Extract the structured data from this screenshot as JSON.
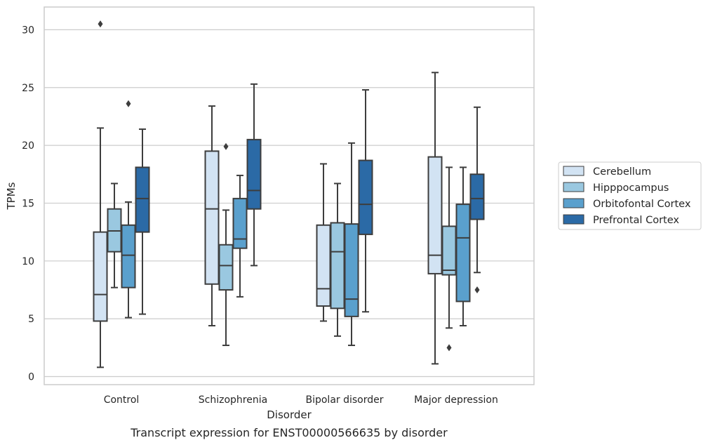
{
  "caption": "Transcript expression for ENST00000566635 by disorder",
  "chart_data": {
    "type": "box",
    "title": "",
    "xlabel": "Disorder",
    "ylabel": "TPMs",
    "ylim": [
      -0.5,
      32
    ],
    "yticks": [
      0,
      5,
      10,
      15,
      20,
      25,
      30
    ],
    "grid": "horizontal",
    "legend_position": "right",
    "categories": [
      "Control",
      "Schizophrenia",
      "Bipolar disorder",
      "Major depression"
    ],
    "series": [
      {
        "name": "Cerebellum",
        "color": "#d2e3f3",
        "boxes": [
          {
            "whislo": 0.8,
            "q1": 4.8,
            "med": 7.1,
            "q3": 12.5,
            "whishi": 21.5,
            "fliers": [
              30.5
            ]
          },
          {
            "whislo": 4.4,
            "q1": 8.0,
            "med": 14.5,
            "q3": 19.5,
            "whishi": 23.4,
            "fliers": []
          },
          {
            "whislo": 4.8,
            "q1": 6.1,
            "med": 7.6,
            "q3": 13.1,
            "whishi": 18.4,
            "fliers": []
          },
          {
            "whislo": 1.1,
            "q1": 8.9,
            "med": 10.5,
            "q3": 19.0,
            "whishi": 26.3,
            "fliers": []
          }
        ]
      },
      {
        "name": "Hipppocampus",
        "color": "#9ac8e0",
        "boxes": [
          {
            "whislo": 7.7,
            "q1": 10.8,
            "med": 12.6,
            "q3": 14.5,
            "whishi": 16.7,
            "fliers": []
          },
          {
            "whislo": 2.7,
            "q1": 7.5,
            "med": 9.6,
            "q3": 11.4,
            "whishi": 14.4,
            "fliers": [
              19.9
            ]
          },
          {
            "whislo": 3.5,
            "q1": 5.9,
            "med": 10.8,
            "q3": 13.3,
            "whishi": 16.7,
            "fliers": []
          },
          {
            "whislo": 4.2,
            "q1": 8.8,
            "med": 9.2,
            "q3": 13.0,
            "whishi": 18.1,
            "fliers": [
              2.5
            ]
          }
        ]
      },
      {
        "name": "Orbitofontal Cortex",
        "color": "#5aa0cd",
        "boxes": [
          {
            "whislo": 5.1,
            "q1": 7.7,
            "med": 10.5,
            "q3": 13.1,
            "whishi": 15.1,
            "fliers": [
              23.6
            ]
          },
          {
            "whislo": 6.9,
            "q1": 11.1,
            "med": 11.9,
            "q3": 15.4,
            "whishi": 17.4,
            "fliers": []
          },
          {
            "whislo": 2.7,
            "q1": 5.2,
            "med": 6.7,
            "q3": 13.2,
            "whishi": 20.2,
            "fliers": []
          },
          {
            "whislo": 4.4,
            "q1": 6.5,
            "med": 12.0,
            "q3": 14.9,
            "whishi": 18.1,
            "fliers": []
          }
        ]
      },
      {
        "name": "Prefrontal Cortex",
        "color": "#2b6aa6",
        "boxes": [
          {
            "whislo": 5.4,
            "q1": 12.5,
            "med": 15.4,
            "q3": 18.1,
            "whishi": 21.4,
            "fliers": []
          },
          {
            "whislo": 9.6,
            "q1": 14.5,
            "med": 16.1,
            "q3": 20.5,
            "whishi": 25.3,
            "fliers": []
          },
          {
            "whislo": 5.6,
            "q1": 12.3,
            "med": 14.9,
            "q3": 18.7,
            "whishi": 24.8,
            "fliers": []
          },
          {
            "whislo": 9.0,
            "q1": 13.6,
            "med": 15.4,
            "q3": 17.5,
            "whishi": 23.3,
            "fliers": [
              7.5
            ]
          }
        ]
      }
    ]
  }
}
